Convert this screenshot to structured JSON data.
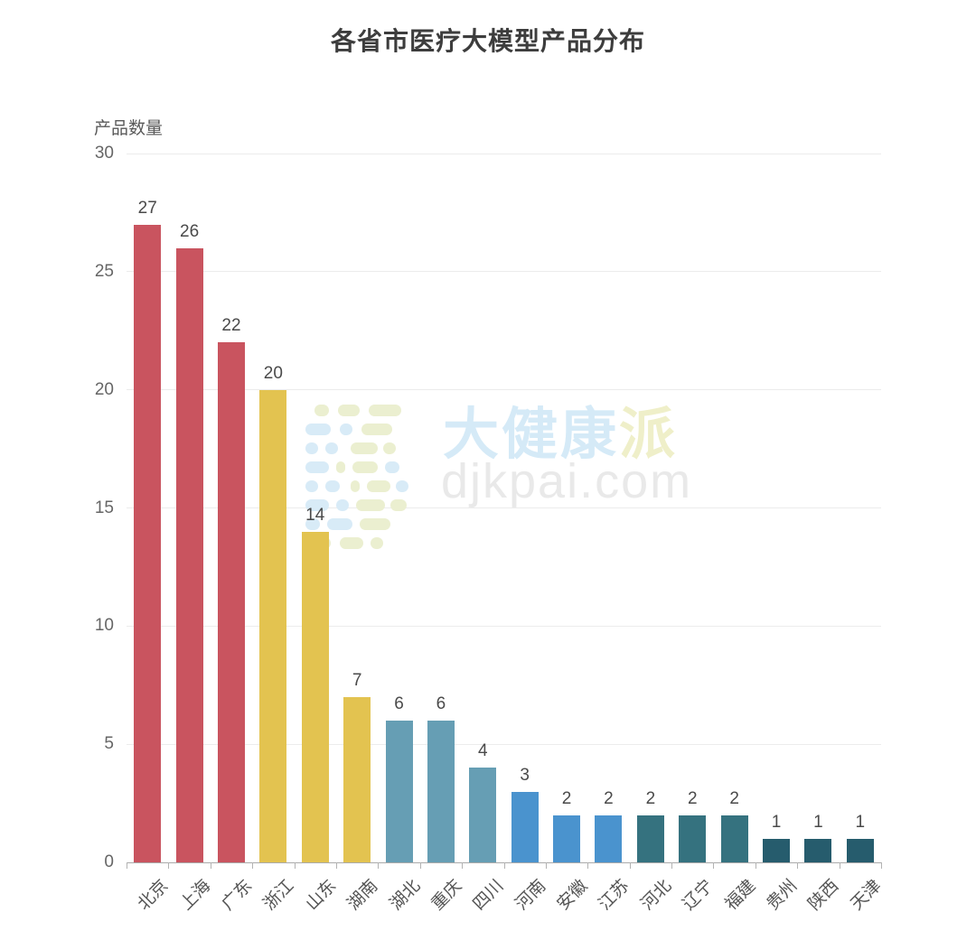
{
  "page": {
    "background": "#ffffff"
  },
  "chart_data": {
    "type": "bar",
    "title": "各省市医疗大模型产品分布",
    "ylabel": "产品数量",
    "xlabel": "",
    "ylim": [
      0,
      30
    ],
    "yticks": [
      0,
      5,
      10,
      15,
      20,
      25,
      30
    ],
    "grid": true,
    "legend_position": "none",
    "categories": [
      "北京",
      "上海",
      "广东",
      "浙江",
      "山东",
      "湖南",
      "湖北",
      "重庆",
      "四川",
      "河南",
      "安徽",
      "江苏",
      "河北",
      "辽宁",
      "福建",
      "贵州",
      "陕西",
      "天津"
    ],
    "values": [
      27,
      26,
      22,
      20,
      14,
      7,
      6,
      6,
      4,
      3,
      2,
      2,
      2,
      2,
      2,
      1,
      1,
      1
    ],
    "bar_colors": [
      "#C9545F",
      "#C9545F",
      "#C9545F",
      "#E3C350",
      "#E3C350",
      "#E3C350",
      "#669EB4",
      "#669EB4",
      "#669EB4",
      "#4A93CE",
      "#4A93CE",
      "#4A93CE",
      "#35727F",
      "#35727F",
      "#35727F",
      "#265C6D",
      "#265C6D",
      "#265C6D"
    ],
    "value_labels_shown": true
  },
  "axis_style": {
    "grid_color": "#ECECEC",
    "axis_line_color": "#AAAAAA",
    "tick_label_color": "#666666",
    "value_label_color": "#4A4A4A",
    "title_color": "#3D3D3D"
  },
  "watermark": {
    "brand_primary": "大健康",
    "brand_accent": "派",
    "domain": "djkpai.com",
    "colors": {
      "brand_primary": "#D5EAF7",
      "brand_accent": "#EFEFC9",
      "domain": "#E9E9E9",
      "logo_blue": "#D8EBF7",
      "logo_green": "#EBEFD0"
    }
  }
}
